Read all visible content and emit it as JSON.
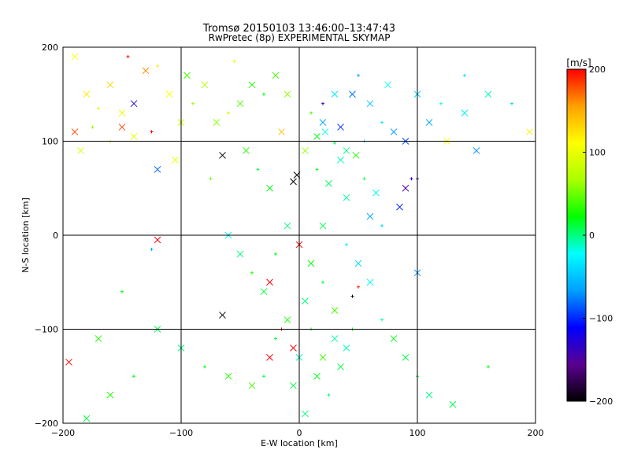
{
  "chart_data": {
    "type": "scatter",
    "title": "Tromsø 20150103 13:46:00–13:47:43",
    "subtitle": "RwPretec (8p) EXPERIMENTAL SKYMAP",
    "xlabel": "E-W location [km]",
    "ylabel": "N-S location [km]",
    "xlim": [
      -200,
      200
    ],
    "ylim": [
      -200,
      200
    ],
    "x_ticks": [
      -200,
      -100,
      0,
      100,
      200
    ],
    "y_ticks": [
      -200,
      -100,
      0,
      100,
      200
    ],
    "grid": true,
    "colorbar": {
      "unit": "[m/s]",
      "min": -200,
      "max": 200,
      "ticks": [
        200,
        100,
        0,
        -100,
        -200
      ],
      "colormap": [
        "#000000",
        "#5a0090",
        "#0000ff",
        "#00a0ff",
        "#00ffff",
        "#00ff00",
        "#aaff00",
        "#ffff00",
        "#ffa000",
        "#ff0000"
      ]
    },
    "markers": [
      "x (large)",
      "+ (small)"
    ],
    "series": [
      {
        "cluster": "north-east",
        "points_xyv": [
          [
            15,
            105,
            20
          ],
          [
            22,
            110,
            -20
          ],
          [
            30,
            98,
            10
          ],
          [
            40,
            90,
            0
          ],
          [
            48,
            85,
            30
          ],
          [
            55,
            100,
            -40
          ],
          [
            35,
            80,
            -10
          ],
          [
            20,
            120,
            -60
          ],
          [
            10,
            130,
            40
          ],
          [
            45,
            150,
            -80
          ],
          [
            60,
            140,
            -50
          ],
          [
            70,
            120,
            -30
          ],
          [
            80,
            110,
            -70
          ],
          [
            90,
            100,
            -90
          ],
          [
            95,
            60,
            -120
          ],
          [
            85,
            30,
            -100
          ],
          [
            65,
            45,
            -20
          ],
          [
            55,
            60,
            10
          ],
          [
            40,
            40,
            -5
          ],
          [
            25,
            55,
            5
          ],
          [
            15,
            70,
            15
          ],
          [
            5,
            90,
            60
          ],
          [
            30,
            150,
            -30
          ],
          [
            50,
            170,
            -60
          ],
          [
            75,
            160,
            -20
          ],
          [
            100,
            150,
            -40
          ],
          [
            120,
            140,
            -20
          ],
          [
            140,
            130,
            -30
          ],
          [
            160,
            150,
            -10
          ],
          [
            180,
            140,
            -40
          ],
          [
            195,
            110,
            120
          ],
          [
            125,
            100,
            110
          ],
          [
            100,
            60,
            -160
          ],
          [
            -2,
            64,
            -200
          ],
          [
            -5,
            57,
            -200
          ],
          [
            20,
            140,
            -140
          ],
          [
            35,
            115,
            -100
          ],
          [
            60,
            20,
            -60
          ],
          [
            70,
            10,
            -40
          ],
          [
            90,
            50,
            -150
          ],
          [
            110,
            120,
            -60
          ],
          [
            140,
            170,
            -40
          ],
          [
            150,
            90,
            -70
          ]
        ]
      },
      {
        "cluster": "north-west",
        "points_xyv": [
          [
            -190,
            190,
            110
          ],
          [
            -180,
            150,
            120
          ],
          [
            -170,
            135,
            90
          ],
          [
            -160,
            160,
            130
          ],
          [
            -150,
            130,
            100
          ],
          [
            -145,
            190,
            200
          ],
          [
            -140,
            140,
            -130
          ],
          [
            -130,
            175,
            160
          ],
          [
            -120,
            180,
            120
          ],
          [
            -110,
            150,
            110
          ],
          [
            -100,
            120,
            80
          ],
          [
            -90,
            140,
            60
          ],
          [
            -80,
            160,
            70
          ],
          [
            -70,
            120,
            60
          ],
          [
            -60,
            130,
            80
          ],
          [
            -50,
            140,
            40
          ],
          [
            -40,
            160,
            30
          ],
          [
            -30,
            150,
            20
          ],
          [
            -20,
            170,
            40
          ],
          [
            -10,
            150,
            60
          ],
          [
            -125,
            110,
            200
          ],
          [
            -65,
            85,
            -200
          ],
          [
            -140,
            105,
            100
          ],
          [
            -175,
            115,
            60
          ],
          [
            -150,
            115,
            180
          ],
          [
            -105,
            80,
            100
          ],
          [
            -75,
            60,
            50
          ],
          [
            -45,
            90,
            30
          ],
          [
            -25,
            50,
            20
          ],
          [
            -35,
            70,
            10
          ],
          [
            -190,
            110,
            180
          ],
          [
            -185,
            90,
            90
          ],
          [
            -160,
            100,
            70
          ],
          [
            -120,
            70,
            -80
          ],
          [
            -95,
            170,
            40
          ],
          [
            -55,
            185,
            100
          ],
          [
            -15,
            110,
            140
          ]
        ]
      },
      {
        "cluster": "center-south",
        "points_xyv": [
          [
            0,
            -10,
            200
          ],
          [
            10,
            -30,
            20
          ],
          [
            20,
            -50,
            10
          ],
          [
            5,
            -70,
            0
          ],
          [
            -10,
            -90,
            30
          ],
          [
            -20,
            -110,
            10
          ],
          [
            0,
            -130,
            -10
          ],
          [
            15,
            -150,
            20
          ],
          [
            25,
            -170,
            0
          ],
          [
            35,
            -140,
            10
          ],
          [
            40,
            -120,
            -10
          ],
          [
            45,
            -100,
            20
          ],
          [
            30,
            -80,
            40
          ],
          [
            -30,
            -60,
            10
          ],
          [
            -40,
            -40,
            30
          ],
          [
            -50,
            -20,
            0
          ],
          [
            -60,
            0,
            -20
          ],
          [
            -20,
            -20,
            20
          ],
          [
            -10,
            10,
            0
          ],
          [
            20,
            10,
            10
          ],
          [
            40,
            -10,
            -30
          ],
          [
            50,
            -30,
            -40
          ],
          [
            60,
            -50,
            -20
          ],
          [
            45,
            -65,
            -200
          ],
          [
            -65,
            -85,
            -200
          ],
          [
            -25,
            -50,
            200
          ],
          [
            -15,
            -100,
            200
          ],
          [
            -5,
            -120,
            200
          ],
          [
            -25,
            -130,
            200
          ],
          [
            50,
            -55,
            190
          ],
          [
            -40,
            -160,
            40
          ],
          [
            -60,
            -150,
            30
          ],
          [
            -80,
            -140,
            20
          ],
          [
            -100,
            -120,
            0
          ],
          [
            -120,
            -100,
            10
          ],
          [
            -140,
            -150,
            20
          ],
          [
            -160,
            -170,
            30
          ],
          [
            -180,
            -195,
            10
          ],
          [
            70,
            -90,
            -10
          ],
          [
            80,
            -110,
            20
          ],
          [
            90,
            -130,
            10
          ],
          [
            100,
            -150,
            20
          ],
          [
            110,
            -170,
            0
          ],
          [
            130,
            -180,
            10
          ],
          [
            160,
            -140,
            20
          ],
          [
            -195,
            -135,
            200
          ],
          [
            -120,
            -5,
            200
          ],
          [
            -125,
            -15,
            -60
          ],
          [
            100,
            -40,
            -70
          ],
          [
            -170,
            -110,
            30
          ],
          [
            -150,
            -60,
            20
          ],
          [
            5,
            -190,
            0
          ],
          [
            -5,
            -160,
            10
          ],
          [
            10,
            -100,
            20
          ],
          [
            20,
            -130,
            40
          ],
          [
            30,
            -110,
            -5
          ],
          [
            -30,
            -150,
            10
          ]
        ]
      }
    ]
  }
}
